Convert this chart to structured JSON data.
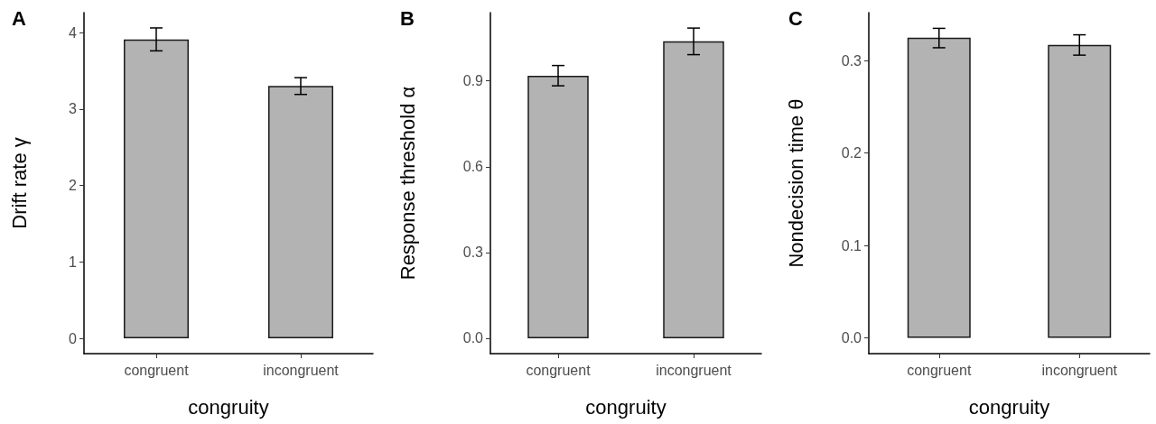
{
  "chart_data": [
    {
      "type": "bar",
      "title": "A",
      "xlabel": "congruity",
      "ylabel": "Drift rate γ",
      "categories": [
        "congruent",
        "incongruent"
      ],
      "values": [
        3.91,
        3.3
      ],
      "errors": [
        [
          3.76,
          4.06
        ],
        [
          3.19,
          3.41
        ]
      ],
      "color": "#b3b3b3",
      "ylim": [
        -0.2,
        4.26
      ],
      "yticks": [
        0,
        1,
        2,
        3,
        4
      ],
      "grid": false
    },
    {
      "type": "bar",
      "title": "B",
      "xlabel": "congruity",
      "ylabel": "Response threshold α",
      "categories": [
        "congruent",
        "incongruent"
      ],
      "values": [
        0.918,
        1.039
      ],
      "errors": [
        [
          0.883,
          0.954
        ],
        [
          0.992,
          1.085
        ]
      ],
      "color": "#b3b3b3",
      "ylim": [
        -0.054,
        1.139
      ],
      "yticks": [
        {
          "value": 0,
          "label": "0.0"
        },
        0.3,
        0.6,
        0.9
      ],
      "grid": false
    },
    {
      "type": "bar",
      "title": "C",
      "xlabel": "congruity",
      "ylabel": "Nondecision time θ",
      "categories": [
        "congruent",
        "incongruent"
      ],
      "values": [
        0.325,
        0.317
      ],
      "errors": [
        [
          0.314,
          0.335
        ],
        [
          0.306,
          0.328
        ]
      ],
      "color": "#b3b3b3",
      "ylim": [
        -0.017,
        0.352
      ],
      "yticks": [
        {
          "value": 0,
          "label": "0.0"
        },
        0.1,
        0.2,
        0.3
      ],
      "grid": false
    }
  ]
}
